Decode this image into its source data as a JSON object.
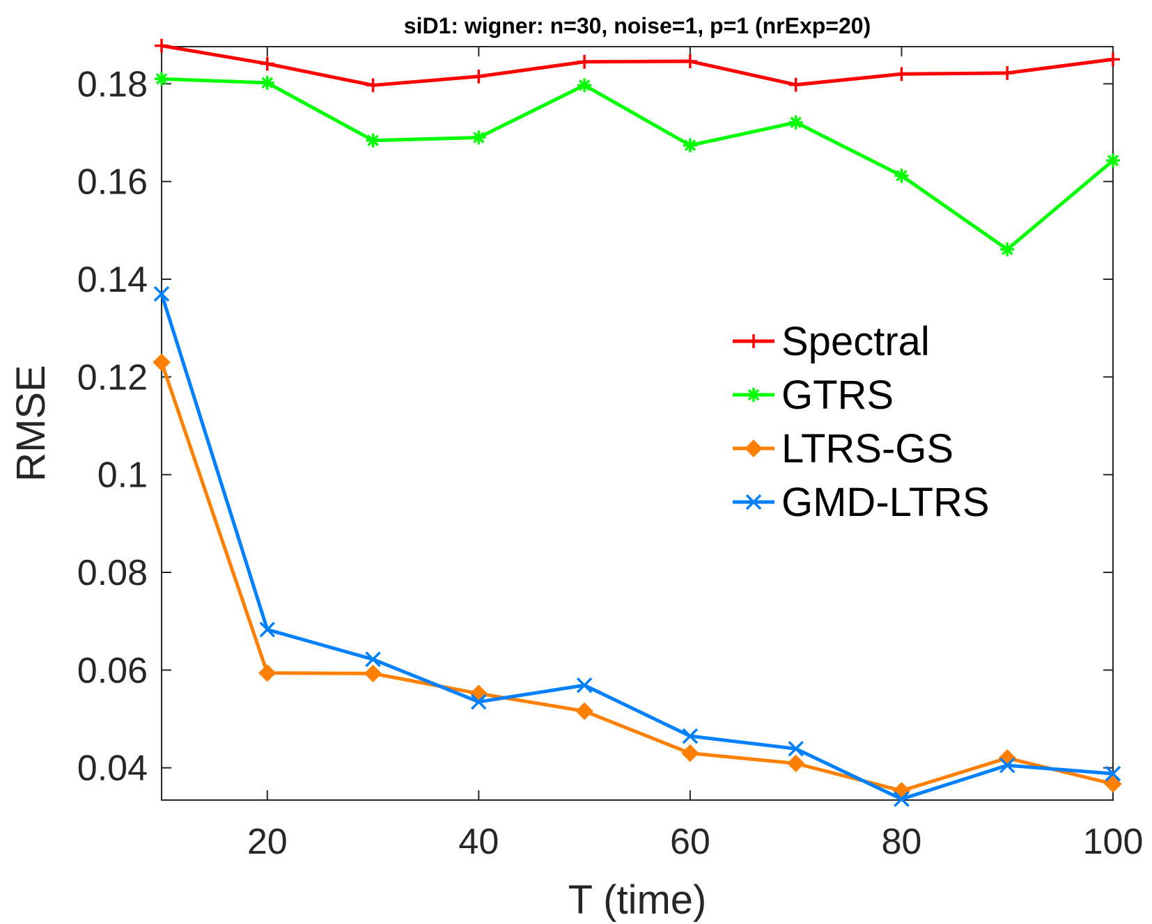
{
  "chart_data": {
    "type": "line",
    "title": "siD1: wigner: n=30, noise=1, p=1 (nrExp=20)",
    "xlabel": "T (time)",
    "ylabel": "RMSE",
    "xlim": [
      10,
      100
    ],
    "ylim": [
      0.0334,
      0.1876
    ],
    "xticks": [
      20,
      40,
      60,
      80,
      100
    ],
    "yticks": [
      0.04,
      0.06,
      0.08,
      0.1,
      0.12,
      0.14,
      0.16,
      0.18
    ],
    "ytick_labels": [
      "0.04",
      "0.06",
      "0.08",
      "0.1",
      "0.12",
      "0.14",
      "0.16",
      "0.18"
    ],
    "grid": false,
    "legend_position": "right-middle",
    "x": [
      10,
      20,
      30,
      40,
      50,
      60,
      70,
      80,
      90,
      100
    ],
    "series": [
      {
        "name": "Spectral",
        "color": "#ff0000",
        "marker": "plus",
        "values": [
          0.1878,
          0.1841,
          0.1797,
          0.1815,
          0.1845,
          0.1846,
          0.1798,
          0.182,
          0.1822,
          0.185
        ]
      },
      {
        "name": "GTRS",
        "color": "#00ff00",
        "marker": "asterisk",
        "values": [
          0.181,
          0.1802,
          0.1684,
          0.169,
          0.1797,
          0.1674,
          0.1721,
          0.1612,
          0.1461,
          0.1643
        ]
      },
      {
        "name": "LTRS-GS",
        "color": "#ff8000",
        "marker": "diamond",
        "values": [
          0.123,
          0.0594,
          0.0593,
          0.0552,
          0.0516,
          0.043,
          0.0409,
          0.0353,
          0.042,
          0.0367
        ]
      },
      {
        "name": "GMD-LTRS",
        "color": "#0080ff",
        "marker": "x",
        "values": [
          0.137,
          0.0683,
          0.0622,
          0.0535,
          0.0569,
          0.0465,
          0.0439,
          0.0336,
          0.0405,
          0.0388
        ]
      }
    ]
  }
}
